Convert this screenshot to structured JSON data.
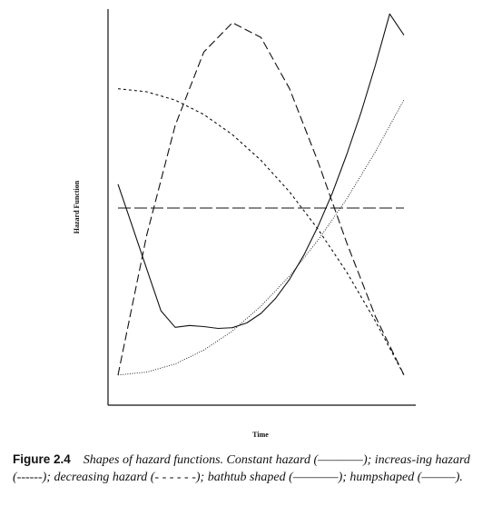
{
  "chart_data": {
    "type": "line",
    "title": "",
    "xlabel": "Time",
    "ylabel": "Hazard Function",
    "xlim": [
      0,
      1
    ],
    "ylim": [
      0,
      1
    ],
    "grid": false,
    "legend": "none",
    "series": [
      {
        "style": "long-dash",
        "color": "#111111",
        "x": [
          0,
          1
        ],
        "y": [
          0.495,
          0.495
        ]
      },
      {
        "style": "fine-dot",
        "color": "#111111",
        "x": [
          0,
          0.1,
          0.2,
          0.3,
          0.4,
          0.5,
          0.6,
          0.7,
          0.8,
          0.9,
          1.0
        ],
        "y": [
          0.04,
          0.048,
          0.07,
          0.108,
          0.16,
          0.228,
          0.31,
          0.408,
          0.52,
          0.648,
          0.79
        ]
      },
      {
        "style": "short-dash",
        "color": "#111111",
        "x": [
          0,
          0.1,
          0.2,
          0.3,
          0.4,
          0.5,
          0.6,
          0.7,
          0.8,
          0.9,
          1.0
        ],
        "y": [
          0.82,
          0.812,
          0.789,
          0.75,
          0.695,
          0.625,
          0.539,
          0.437,
          0.32,
          0.187,
          0.04
        ]
      },
      {
        "style": "solid",
        "color": "#111111",
        "x": [
          0,
          0.05,
          0.1,
          0.15,
          0.2,
          0.25,
          0.3,
          0.35,
          0.4,
          0.45,
          0.5,
          0.55,
          0.6,
          0.65,
          0.7,
          0.75,
          0.8,
          0.85,
          0.9,
          0.95,
          1.0
        ],
        "y": [
          0.56,
          0.445,
          0.33,
          0.215,
          0.17,
          0.175,
          0.172,
          0.167,
          0.169,
          0.182,
          0.208,
          0.248,
          0.301,
          0.367,
          0.446,
          0.537,
          0.641,
          0.756,
          0.884,
          1.024,
          0.966
        ]
      },
      {
        "style": "dash",
        "color": "#111111",
        "x": [
          0,
          0.1,
          0.2,
          0.3,
          0.4,
          0.5,
          0.6,
          0.7,
          0.8,
          0.9,
          1.0
        ],
        "y": [
          0.04,
          0.42,
          0.72,
          0.92,
          1.0,
          0.96,
          0.82,
          0.62,
          0.4,
          0.2,
          0.04
        ]
      }
    ]
  },
  "caption": {
    "label": "Figure 2.4",
    "text": "Shapes of hazard functions. Constant hazard (————); increas-ing hazard (------); decreasing hazard (- - - - - -); bathtub shaped (————); humpshaped (———)."
  }
}
